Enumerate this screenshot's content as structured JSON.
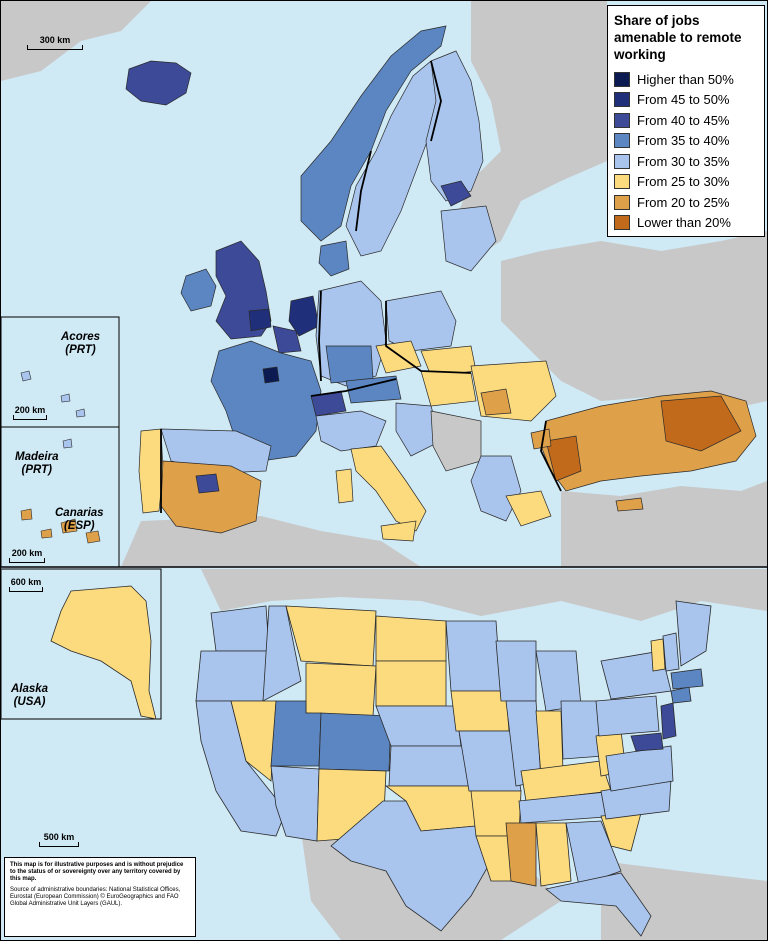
{
  "legend": {
    "title": "Share of jobs amenable to remote working",
    "items": [
      {
        "label": "Higher than 50%",
        "color": "#0c1a52"
      },
      {
        "label": "From 45 to 50%",
        "color": "#1f2f7a"
      },
      {
        "label": "From 40 to 45%",
        "color": "#3c4a97"
      },
      {
        "label": "From 35 to 40%",
        "color": "#5b86c1"
      },
      {
        "label": "From 30 to 35%",
        "color": "#a9c5ee"
      },
      {
        "label": "From 25 to 30%",
        "color": "#fbdb7e"
      },
      {
        "label": "From 20 to 25%",
        "color": "#dfa04a"
      },
      {
        "label": "Lower than 20%",
        "color": "#c26a1c"
      }
    ]
  },
  "scales": {
    "europe": "300 km",
    "acores": "200 km",
    "canarias": "200 km",
    "alaska": "600 km",
    "usa": "500 km"
  },
  "insets": {
    "acores": {
      "name": "Acores",
      "code": "(PRT)"
    },
    "madeira": {
      "name": "Madeira",
      "code": "(PRT)"
    },
    "canarias": {
      "name": "Canarias",
      "code": "(ESP)"
    },
    "alaska": {
      "name": "Alaska",
      "code": "(USA)"
    }
  },
  "disclaimer": {
    "main": "This map is for illustrative purposes and is without prejudice to the status of or sovereignty over any territory covered by this map.",
    "source": "Source of administrative boundaries: National Statistical Offices, Eurostat (European Commission) © EuroGeographics and FAO Global Administrative Unit Layers (GAUL)."
  },
  "colors": {
    "sea": "#cfe9f5",
    "non_covered_land": "#c8c8c8",
    "border": "#2a2a2a"
  }
}
